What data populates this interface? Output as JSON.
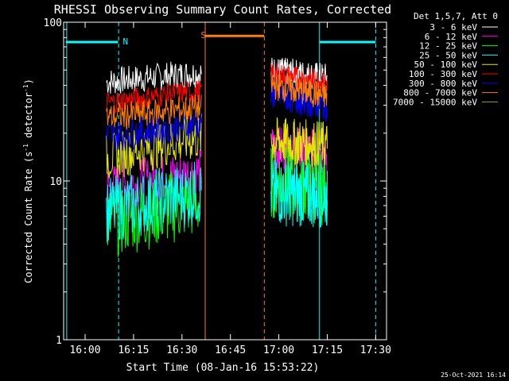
{
  "chart_data": {
    "type": "line",
    "title": "RHESSI Observing Summary Count Rates, Corrected",
    "xlabel": "Start Time (08-Jan-16 15:53:22)",
    "ylabel_main": "Corrected Count Rate (s",
    "ylabel_sup1": "-1",
    "ylabel_mid": " detector",
    "ylabel_sup2": "-1",
    "ylabel_end": ")",
    "yscale": "log",
    "ylim": [
      1,
      100
    ],
    "xlim": [
      15.889,
      17.556
    ],
    "x_ticks": [
      {
        "v": 16.0,
        "label": "16:00"
      },
      {
        "v": 16.25,
        "label": "16:15"
      },
      {
        "v": 16.5,
        "label": "16:30"
      },
      {
        "v": 16.75,
        "label": "16:45"
      },
      {
        "v": 17.0,
        "label": "17:00"
      },
      {
        "v": 17.25,
        "label": "17:15"
      },
      {
        "v": 17.5,
        "label": "17:30"
      }
    ],
    "y_ticks": [
      {
        "v": 100,
        "label": "100"
      },
      {
        "v": 10,
        "label": "10"
      },
      {
        "v": 1,
        "label": "1"
      }
    ],
    "legend_title": "Det 1,5,7, Att 0",
    "series": [
      {
        "name": "3 - 6 keV",
        "color": "#ffffff",
        "seg1": [
          42,
          48
        ],
        "seg2": [
          50,
          45
        ],
        "noise": 0.03
      },
      {
        "name": "6 - 12 keV",
        "color": "#ff00ff",
        "seg1": [
          9.0,
          11.5
        ],
        "seg2": [
          16,
          15
        ],
        "noise": 0.05
      },
      {
        "name": "12 - 25 keV",
        "color": "#00ff00",
        "seg1": [
          5.5,
          7.5
        ],
        "seg2": [
          10,
          9
        ],
        "noise": 0.08
      },
      {
        "name": "25 - 50 keV",
        "color": "#00ffff",
        "seg1": [
          6.5,
          8.5
        ],
        "seg2": [
          8.5,
          8
        ],
        "noise": 0.07
      },
      {
        "name": "50 - 100 keV",
        "color": "#e6e600",
        "seg1": [
          14,
          19
        ],
        "seg2": [
          18,
          17
        ],
        "noise": 0.05
      },
      {
        "name": "100 - 300 keV",
        "color": "#ff0000",
        "seg1": [
          31,
          37
        ],
        "seg2": [
          47,
          42
        ],
        "noise": 0.025
      },
      {
        "name": "300 - 800 keV",
        "color": "#0000ff",
        "seg1": [
          19,
          23
        ],
        "seg2": [
          36,
          30
        ],
        "noise": 0.035
      },
      {
        "name": "800 - 7000 keV",
        "color": "#ff7f00",
        "seg1": [
          25,
          29
        ],
        "seg2": [
          40,
          34
        ],
        "noise": 0.03
      },
      {
        "name": "7000 - 15000 keV",
        "color": "#a0a000",
        "seg1": [],
        "seg2": [],
        "noise": 0
      }
    ],
    "segments": [
      [
        16.11,
        16.6
      ],
      [
        16.96,
        17.25
      ]
    ],
    "flags": [
      {
        "label": "N",
        "color": "#00ffff",
        "start": 15.9,
        "end": 16.17,
        "y": 75
      },
      {
        "label": "S",
        "color": "#ff7f00",
        "start": 16.62,
        "end": 16.925,
        "y": 82
      },
      {
        "label": "",
        "color": "#00ffff",
        "start": 17.21,
        "end": 17.5,
        "y": 75
      }
    ],
    "vlines": [
      {
        "x": 15.905,
        "color": "#00ffff",
        "dash": false
      },
      {
        "x": 16.173,
        "color": "#00ffff",
        "dash": true
      },
      {
        "x": 16.62,
        "color": "#ff7f00",
        "dash": false
      },
      {
        "x": 16.925,
        "color": "#ff7f00",
        "dash": true
      },
      {
        "x": 17.21,
        "color": "#00ffff",
        "dash": false
      },
      {
        "x": 17.5,
        "color": "#00ffff",
        "dash": true
      }
    ]
  },
  "footer": {
    "date": "25-Oct-2021 16:14"
  }
}
